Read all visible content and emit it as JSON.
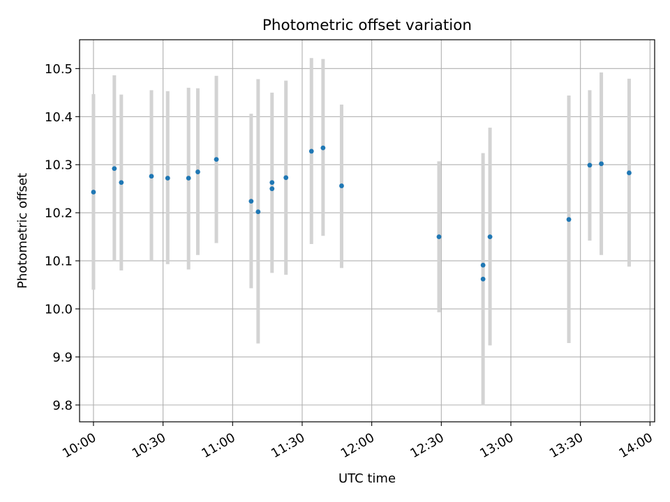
{
  "chart_data": {
    "type": "scatter",
    "title": "Photometric offset variation",
    "xlabel": "UTC time",
    "ylabel": "Photometric offset",
    "x_type": "time",
    "xlim": [
      "09:54",
      "14:02"
    ],
    "ylim": [
      9.765,
      10.56
    ],
    "grid": true,
    "x_ticks": [
      "10:00",
      "10:30",
      "11:00",
      "11:30",
      "12:00",
      "12:30",
      "13:00",
      "13:30",
      "14:00"
    ],
    "y_ticks": [
      "9.8",
      "9.9",
      "10.0",
      "10.1",
      "10.2",
      "10.3",
      "10.4",
      "10.5"
    ],
    "marker_color": "#1f77b4",
    "errorbar_color": "#d3d3d3",
    "points": [
      {
        "x": "10:00",
        "y": 10.243,
        "ylow": 10.04,
        "yhigh": 10.447
      },
      {
        "x": "10:09",
        "y": 10.292,
        "ylow": 10.1,
        "yhigh": 10.486
      },
      {
        "x": "10:12",
        "y": 10.263,
        "ylow": 10.08,
        "yhigh": 10.446
      },
      {
        "x": "10:25",
        "y": 10.276,
        "ylow": 10.1,
        "yhigh": 10.455
      },
      {
        "x": "10:32",
        "y": 10.272,
        "ylow": 10.093,
        "yhigh": 10.453
      },
      {
        "x": "10:41",
        "y": 10.272,
        "ylow": 10.082,
        "yhigh": 10.46
      },
      {
        "x": "10:45",
        "y": 10.285,
        "ylow": 10.112,
        "yhigh": 10.459
      },
      {
        "x": "10:53",
        "y": 10.311,
        "ylow": 10.137,
        "yhigh": 10.485
      },
      {
        "x": "11:08",
        "y": 10.224,
        "ylow": 10.043,
        "yhigh": 10.406
      },
      {
        "x": "11:11",
        "y": 10.202,
        "ylow": 9.928,
        "yhigh": 10.478
      },
      {
        "x": "11:17",
        "y": 10.263,
        "ylow": 10.075,
        "yhigh": 10.45
      },
      {
        "x": "11:17",
        "y": 10.25
      },
      {
        "x": "11:23",
        "y": 10.273,
        "ylow": 10.071,
        "yhigh": 10.475
      },
      {
        "x": "11:34",
        "y": 10.328,
        "ylow": 10.135,
        "yhigh": 10.522
      },
      {
        "x": "11:39",
        "y": 10.335,
        "ylow": 10.152,
        "yhigh": 10.52
      },
      {
        "x": "11:47",
        "y": 10.256,
        "ylow": 10.085,
        "yhigh": 10.425
      },
      {
        "x": "12:29",
        "y": 10.15,
        "ylow": 9.993,
        "yhigh": 10.307
      },
      {
        "x": "12:48",
        "y": 10.091
      },
      {
        "x": "12:48",
        "y": 10.062,
        "ylow": 9.799,
        "yhigh": 10.324
      },
      {
        "x": "12:51",
        "y": 10.15,
        "ylow": 9.924,
        "yhigh": 10.377
      },
      {
        "x": "13:25",
        "y": 10.186,
        "ylow": 9.929,
        "yhigh": 10.444
      },
      {
        "x": "13:34",
        "y": 10.299,
        "ylow": 10.142,
        "yhigh": 10.455
      },
      {
        "x": "13:39",
        "y": 10.302,
        "ylow": 10.112,
        "yhigh": 10.492
      },
      {
        "x": "13:51",
        "y": 10.283,
        "ylow": 10.088,
        "yhigh": 10.479
      }
    ]
  }
}
